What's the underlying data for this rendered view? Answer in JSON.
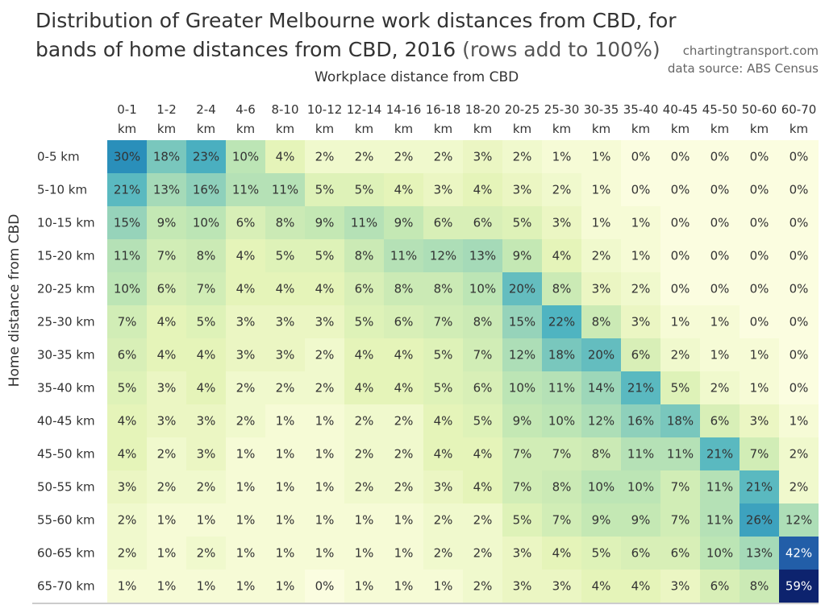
{
  "chart_data": {
    "type": "heatmap",
    "title_main": "Distribution of Greater Melbourne work distances from CBD, for bands of home distances from CBD, 2016",
    "title_suffix": "(rows add to 100%)",
    "credit_site": "chartingtransport.com",
    "credit_source": "data source: ABS Census",
    "xlabel": "Workplace distance from CBD",
    "ylabel": "Home distance from CBD",
    "columns": [
      [
        "0-1",
        "km"
      ],
      [
        "1-2",
        "km"
      ],
      [
        "2-4",
        "km"
      ],
      [
        "4-6",
        "km"
      ],
      [
        "8-10",
        "km"
      ],
      [
        "10-12",
        "km"
      ],
      [
        "12-14",
        "km"
      ],
      [
        "14-16",
        "km"
      ],
      [
        "16-18",
        "km"
      ],
      [
        "18-20",
        "km"
      ],
      [
        "20-25",
        "km"
      ],
      [
        "25-30",
        "km"
      ],
      [
        "30-35",
        "km"
      ],
      [
        "35-40",
        "km"
      ],
      [
        "40-45",
        "km"
      ],
      [
        "45-50",
        "km"
      ],
      [
        "50-60",
        "km"
      ],
      [
        "60-70",
        "km"
      ]
    ],
    "rows": [
      "0-5 km",
      "5-10 km",
      "10-15 km",
      "15-20 km",
      "20-25 km",
      "25-30 km",
      "30-35 km",
      "35-40 km",
      "40-45 km",
      "45-50 km",
      "50-55 km",
      "55-60 km",
      "60-65 km",
      "65-70 km"
    ],
    "values": [
      [
        30,
        18,
        23,
        10,
        4,
        2,
        2,
        2,
        2,
        3,
        2,
        1,
        1,
        0,
        0,
        0,
        0,
        0
      ],
      [
        21,
        13,
        16,
        11,
        11,
        5,
        5,
        4,
        3,
        4,
        3,
        2,
        1,
        0,
        0,
        0,
        0,
        0
      ],
      [
        15,
        9,
        10,
        6,
        8,
        9,
        11,
        9,
        6,
        6,
        5,
        3,
        1,
        1,
        0,
        0,
        0,
        0
      ],
      [
        11,
        7,
        8,
        4,
        5,
        5,
        8,
        11,
        12,
        13,
        9,
        4,
        2,
        1,
        0,
        0,
        0,
        0
      ],
      [
        10,
        6,
        7,
        4,
        4,
        4,
        6,
        8,
        8,
        10,
        20,
        8,
        3,
        2,
        0,
        0,
        0,
        0
      ],
      [
        7,
        4,
        5,
        3,
        3,
        3,
        5,
        6,
        7,
        8,
        15,
        22,
        8,
        3,
        1,
        1,
        0,
        0
      ],
      [
        6,
        4,
        4,
        3,
        3,
        2,
        4,
        4,
        5,
        7,
        12,
        18,
        20,
        6,
        2,
        1,
        1,
        0
      ],
      [
        5,
        3,
        4,
        2,
        2,
        2,
        4,
        4,
        5,
        6,
        10,
        11,
        14,
        21,
        5,
        2,
        1,
        0
      ],
      [
        4,
        3,
        3,
        2,
        1,
        1,
        2,
        2,
        4,
        5,
        9,
        10,
        12,
        16,
        18,
        6,
        3,
        1
      ],
      [
        4,
        2,
        3,
        1,
        1,
        1,
        2,
        2,
        4,
        4,
        7,
        7,
        8,
        11,
        11,
        21,
        7,
        2
      ],
      [
        3,
        2,
        2,
        1,
        1,
        1,
        2,
        2,
        3,
        4,
        7,
        8,
        10,
        10,
        7,
        11,
        21,
        2
      ],
      [
        2,
        1,
        1,
        1,
        1,
        1,
        1,
        1,
        2,
        2,
        5,
        7,
        9,
        9,
        7,
        11,
        26,
        12
      ],
      [
        2,
        1,
        2,
        1,
        1,
        1,
        1,
        1,
        2,
        2,
        3,
        4,
        5,
        6,
        6,
        10,
        13,
        42
      ],
      [
        1,
        1,
        1,
        1,
        1,
        0,
        1,
        1,
        1,
        2,
        3,
        3,
        4,
        4,
        3,
        6,
        8,
        59
      ]
    ],
    "value_suffix": "%",
    "color_scale": [
      "#fbfde0",
      "#e5f4b9",
      "#c4e8b4",
      "#8ed0bb",
      "#4fb4c1",
      "#2a8fba",
      "#225ea8",
      "#0c1f6b"
    ],
    "grid": false
  }
}
